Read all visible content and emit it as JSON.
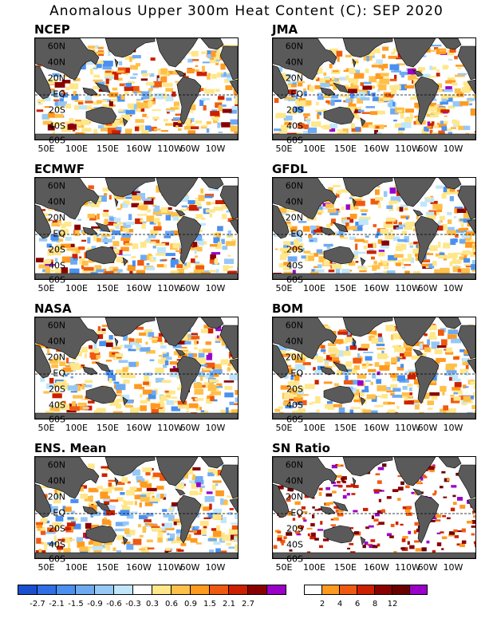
{
  "title": "Anomalous Upper 300m Heat Content (C): SEP 2020",
  "lat_labels": [
    "60N",
    "40N",
    "20N",
    "EQ",
    "20S",
    "40S",
    "60S"
  ],
  "lon_labels": [
    "50E",
    "100E",
    "150E",
    "160W",
    "110W",
    "60W",
    "10W"
  ],
  "panels": [
    {
      "name": "NCEP",
      "type": "anomaly"
    },
    {
      "name": "JMA",
      "type": "anomaly"
    },
    {
      "name": "ECMWF",
      "type": "anomaly"
    },
    {
      "name": "GFDL",
      "type": "anomaly"
    },
    {
      "name": "NASA",
      "type": "anomaly"
    },
    {
      "name": "BOM",
      "type": "anomaly"
    },
    {
      "name": "ENS. Mean",
      "type": "anomaly"
    },
    {
      "name": "SN Ratio",
      "type": "snr"
    }
  ],
  "anomaly_colorbar": {
    "colors": [
      "#1a4fd0",
      "#2e6fe6",
      "#4a90f0",
      "#6eaaf2",
      "#96c8f6",
      "#c0e6fa",
      "#ffffff",
      "#ffe78a",
      "#ffc04a",
      "#ff9a20",
      "#f05a10",
      "#cc2000",
      "#8a0000",
      "#9a00c8"
    ],
    "labels": [
      "-2.7",
      "-2.1",
      "-1.5",
      "-0.9",
      "-0.6",
      "-0.3",
      "0.3",
      "0.6",
      "0.9",
      "1.5",
      "2.1",
      "2.7"
    ]
  },
  "snr_colorbar": {
    "colors": [
      "#ffffff",
      "#ff9a20",
      "#f05a10",
      "#cc2000",
      "#8a0000",
      "#6a0000",
      "#9a00c8"
    ],
    "labels": [
      "2",
      "4",
      "6",
      "8",
      "12"
    ]
  },
  "land_color": "#5a5a5a"
}
